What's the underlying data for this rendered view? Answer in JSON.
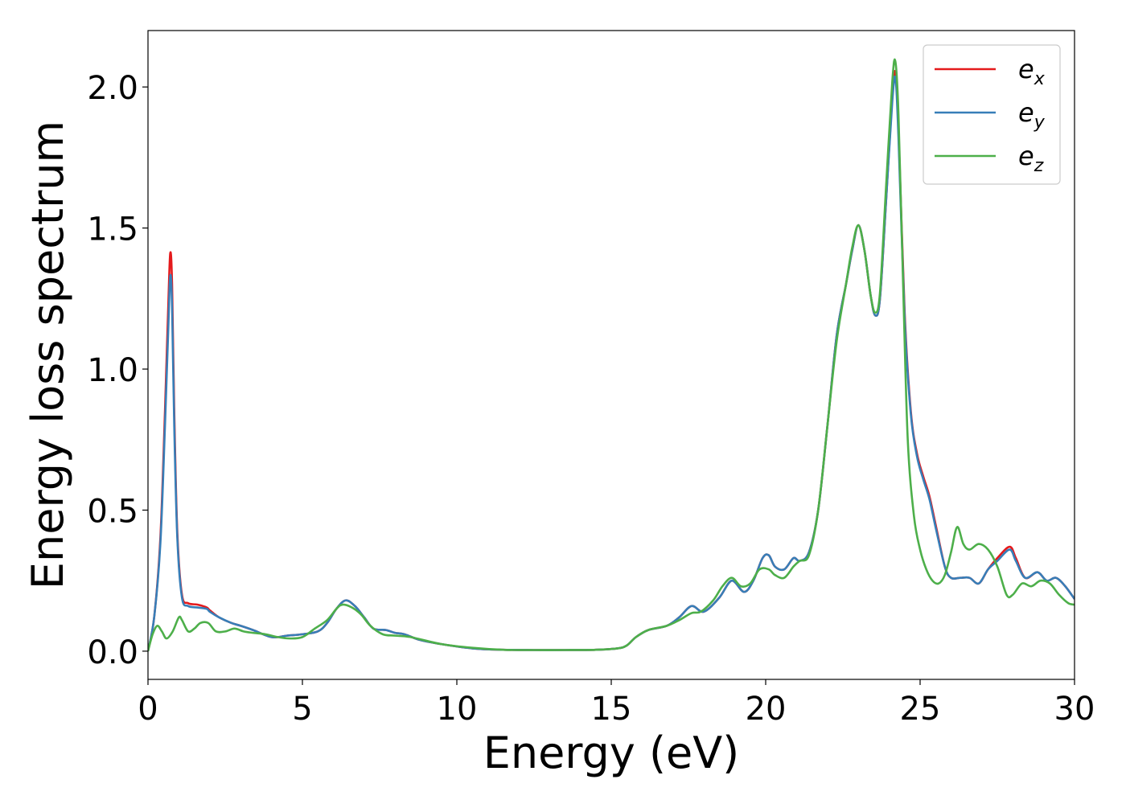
{
  "chart_data": {
    "type": "line",
    "title": "",
    "xlabel": "Energy (eV)",
    "ylabel": "Energy loss spectrum",
    "xlim": [
      0,
      30
    ],
    "ylim": [
      -0.1,
      2.2
    ],
    "xticks": [
      0,
      5,
      10,
      15,
      20,
      25,
      30
    ],
    "yticks": [
      0.0,
      0.5,
      1.0,
      1.5,
      2.0
    ],
    "xtick_labels": [
      "0",
      "5",
      "10",
      "15",
      "20",
      "25",
      "30"
    ],
    "ytick_labels": [
      "0.0",
      "0.5",
      "1.0",
      "1.5",
      "2.0"
    ],
    "grid": false,
    "legend_position": "top-right",
    "series": [
      {
        "name": "e_x",
        "legend_base": "e",
        "legend_sub": "x",
        "color": "#e41a1c",
        "x": [
          0,
          0.2,
          0.4,
          0.55,
          0.65,
          0.72,
          0.78,
          0.85,
          0.95,
          1.1,
          1.3,
          1.6,
          1.9,
          2.0,
          2.3,
          2.7,
          3.0,
          3.4,
          4.0,
          4.5,
          5.0,
          5.5,
          5.8,
          6.1,
          6.4,
          6.7,
          7.0,
          7.3,
          7.7,
          8.0,
          8.3,
          8.8,
          9.5,
          10.5,
          11.5,
          12.5,
          13.5,
          14.5,
          15.2,
          15.5,
          15.8,
          16.2,
          16.8,
          17.2,
          17.6,
          18.0,
          18.5,
          18.9,
          19.3,
          19.6,
          19.9,
          20.1,
          20.3,
          20.6,
          20.9,
          21.1,
          21.4,
          21.7,
          22.0,
          22.3,
          22.6,
          22.8,
          23.0,
          23.2,
          23.4,
          23.55,
          23.7,
          23.9,
          24.1,
          24.2,
          24.3,
          24.5,
          24.7,
          24.9,
          25.1,
          25.3,
          25.5,
          25.8,
          26.0,
          26.3,
          26.6,
          26.9,
          27.2,
          27.5,
          27.9,
          28.1,
          28.4,
          28.8,
          29.1,
          29.4,
          29.7,
          30.0
        ],
        "y": [
          0.0,
          0.12,
          0.4,
          0.85,
          1.2,
          1.41,
          1.3,
          0.85,
          0.42,
          0.2,
          0.17,
          0.165,
          0.155,
          0.145,
          0.12,
          0.1,
          0.09,
          0.075,
          0.05,
          0.055,
          0.06,
          0.07,
          0.1,
          0.15,
          0.18,
          0.16,
          0.12,
          0.08,
          0.075,
          0.065,
          0.06,
          0.04,
          0.025,
          0.01,
          0.005,
          0.004,
          0.004,
          0.005,
          0.01,
          0.02,
          0.05,
          0.075,
          0.09,
          0.12,
          0.16,
          0.14,
          0.19,
          0.25,
          0.21,
          0.25,
          0.33,
          0.34,
          0.3,
          0.29,
          0.33,
          0.32,
          0.35,
          0.5,
          0.8,
          1.12,
          1.3,
          1.42,
          1.51,
          1.42,
          1.26,
          1.19,
          1.25,
          1.6,
          1.97,
          2.05,
          1.85,
          1.2,
          0.85,
          0.7,
          0.62,
          0.55,
          0.45,
          0.3,
          0.26,
          0.26,
          0.26,
          0.24,
          0.29,
          0.33,
          0.37,
          0.33,
          0.26,
          0.28,
          0.25,
          0.26,
          0.23,
          0.185
        ]
      },
      {
        "name": "e_y",
        "legend_base": "e",
        "legend_sub": "y",
        "color": "#377eb8",
        "x": [
          0,
          0.2,
          0.4,
          0.55,
          0.65,
          0.72,
          0.78,
          0.85,
          0.95,
          1.1,
          1.3,
          1.6,
          1.9,
          2.0,
          2.3,
          2.7,
          3.0,
          3.4,
          4.0,
          4.5,
          5.0,
          5.5,
          5.8,
          6.1,
          6.4,
          6.7,
          7.0,
          7.3,
          7.7,
          8.0,
          8.3,
          8.8,
          9.5,
          10.5,
          11.5,
          12.5,
          13.5,
          14.5,
          15.2,
          15.5,
          15.8,
          16.2,
          16.8,
          17.2,
          17.6,
          18.0,
          18.5,
          18.9,
          19.3,
          19.6,
          19.9,
          20.1,
          20.3,
          20.6,
          20.9,
          21.1,
          21.4,
          21.7,
          22.0,
          22.3,
          22.6,
          22.8,
          23.0,
          23.2,
          23.4,
          23.55,
          23.7,
          23.9,
          24.1,
          24.2,
          24.3,
          24.5,
          24.7,
          24.9,
          25.1,
          25.3,
          25.5,
          25.8,
          26.0,
          26.3,
          26.6,
          26.9,
          27.2,
          27.5,
          27.9,
          28.1,
          28.4,
          28.8,
          29.1,
          29.4,
          29.7,
          30.0
        ],
        "y": [
          0.0,
          0.12,
          0.38,
          0.8,
          1.12,
          1.33,
          1.22,
          0.8,
          0.4,
          0.19,
          0.16,
          0.155,
          0.15,
          0.14,
          0.12,
          0.1,
          0.09,
          0.075,
          0.05,
          0.055,
          0.06,
          0.07,
          0.1,
          0.15,
          0.18,
          0.16,
          0.12,
          0.08,
          0.075,
          0.065,
          0.06,
          0.04,
          0.025,
          0.01,
          0.005,
          0.004,
          0.004,
          0.005,
          0.01,
          0.02,
          0.05,
          0.075,
          0.09,
          0.12,
          0.16,
          0.14,
          0.19,
          0.25,
          0.21,
          0.25,
          0.33,
          0.34,
          0.3,
          0.29,
          0.33,
          0.32,
          0.35,
          0.5,
          0.8,
          1.12,
          1.3,
          1.42,
          1.51,
          1.42,
          1.26,
          1.19,
          1.25,
          1.6,
          1.95,
          2.03,
          1.82,
          1.18,
          0.84,
          0.69,
          0.61,
          0.54,
          0.44,
          0.3,
          0.26,
          0.26,
          0.26,
          0.24,
          0.29,
          0.32,
          0.36,
          0.32,
          0.26,
          0.28,
          0.25,
          0.26,
          0.23,
          0.185
        ]
      },
      {
        "name": "e_z",
        "legend_base": "e",
        "legend_sub": "z",
        "color": "#4daf4a",
        "x": [
          0,
          0.15,
          0.3,
          0.45,
          0.6,
          0.8,
          1.0,
          1.1,
          1.3,
          1.5,
          1.7,
          1.95,
          2.2,
          2.5,
          2.8,
          3.1,
          3.4,
          3.8,
          4.2,
          4.6,
          5.0,
          5.4,
          5.8,
          6.1,
          6.3,
          6.6,
          6.9,
          7.2,
          7.6,
          8.0,
          8.5,
          9.5,
          10.5,
          11.5,
          12.5,
          13.5,
          14.5,
          15.2,
          15.5,
          15.8,
          16.2,
          16.8,
          17.2,
          17.6,
          17.9,
          18.3,
          18.6,
          18.9,
          19.2,
          19.5,
          19.8,
          20.1,
          20.3,
          20.6,
          20.9,
          21.1,
          21.4,
          21.7,
          22.0,
          22.3,
          22.6,
          22.8,
          23.0,
          23.2,
          23.4,
          23.55,
          23.7,
          23.9,
          24.1,
          24.2,
          24.3,
          24.45,
          24.6,
          24.8,
          25.0,
          25.2,
          25.4,
          25.6,
          25.8,
          26.0,
          26.2,
          26.4,
          26.6,
          26.9,
          27.2,
          27.5,
          27.8,
          28.0,
          28.3,
          28.6,
          28.9,
          29.2,
          29.5,
          29.8,
          30.0
        ],
        "y": [
          0.0,
          0.06,
          0.09,
          0.07,
          0.045,
          0.07,
          0.12,
          0.11,
          0.07,
          0.08,
          0.1,
          0.1,
          0.07,
          0.07,
          0.08,
          0.07,
          0.065,
          0.06,
          0.05,
          0.045,
          0.05,
          0.08,
          0.11,
          0.15,
          0.165,
          0.155,
          0.13,
          0.09,
          0.06,
          0.055,
          0.05,
          0.025,
          0.012,
          0.005,
          0.004,
          0.004,
          0.005,
          0.01,
          0.02,
          0.05,
          0.075,
          0.09,
          0.11,
          0.135,
          0.14,
          0.18,
          0.23,
          0.26,
          0.23,
          0.24,
          0.29,
          0.29,
          0.27,
          0.26,
          0.3,
          0.32,
          0.34,
          0.5,
          0.8,
          1.1,
          1.3,
          1.43,
          1.51,
          1.42,
          1.26,
          1.2,
          1.27,
          1.65,
          2.02,
          2.09,
          1.9,
          1.3,
          0.75,
          0.48,
          0.36,
          0.29,
          0.25,
          0.24,
          0.27,
          0.35,
          0.44,
          0.38,
          0.36,
          0.38,
          0.36,
          0.3,
          0.2,
          0.2,
          0.24,
          0.23,
          0.25,
          0.24,
          0.2,
          0.17,
          0.165
        ]
      }
    ]
  }
}
